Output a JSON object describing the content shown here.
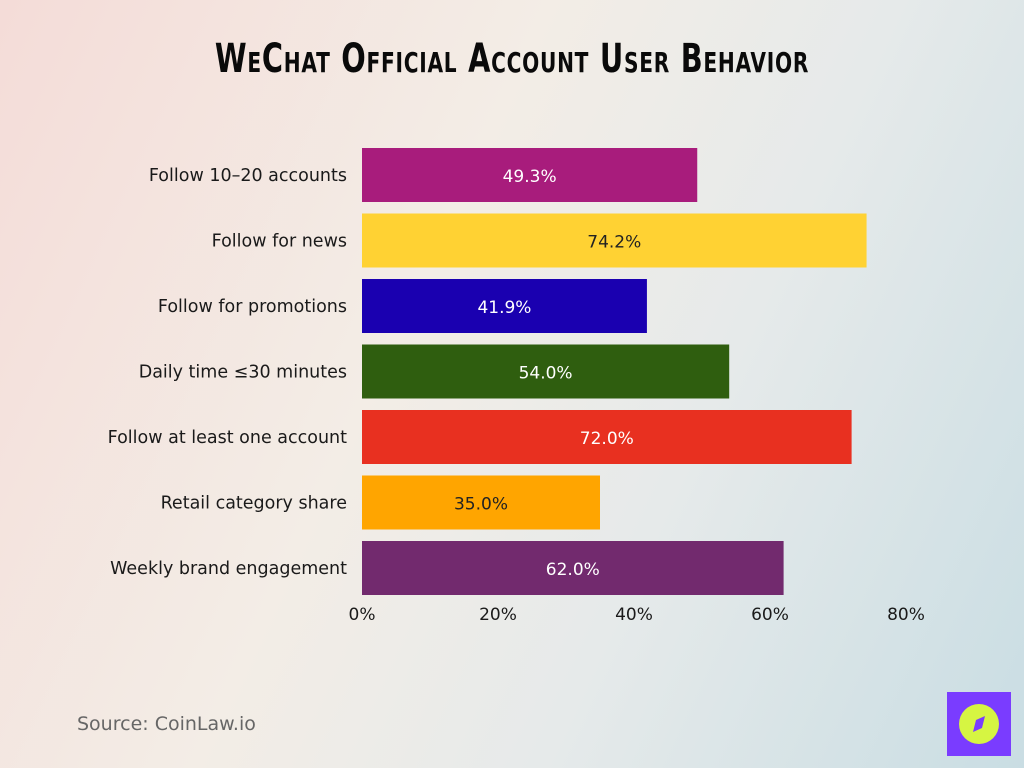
{
  "chart_data": {
    "type": "bar",
    "orientation": "horizontal",
    "title": "WeChat Official Account User Behavior",
    "categories": [
      "Follow 10–20 accounts",
      "Follow for news",
      "Follow for promotions",
      "Daily time ≤30 minutes",
      "Follow at least one account",
      "Retail category share",
      "Weekly brand engagement"
    ],
    "values": [
      49.3,
      74.2,
      41.9,
      54.0,
      72.0,
      35.0,
      62.0
    ],
    "data_labels": [
      "49.3%",
      "74.2%",
      "41.9%",
      "54.0%",
      "72.0%",
      "35.0%",
      "62.0%"
    ],
    "colors": [
      "#a81c7c",
      "#ffd233",
      "#1a00b0",
      "#2f5e0f",
      "#e83020",
      "#ffa500",
      "#722a6e"
    ],
    "label_colors": [
      "#ffffff",
      "#222222",
      "#ffffff",
      "#ffffff",
      "#ffffff",
      "#222222",
      "#ffffff"
    ],
    "xlim": [
      0,
      80
    ],
    "xticks": [
      0,
      20,
      40,
      60,
      80
    ],
    "xtick_labels": [
      "0%",
      "20%",
      "40%",
      "60%",
      "80%"
    ],
    "grid": false,
    "xlabel": "",
    "ylabel": ""
  },
  "source": "Source: CoinLaw.io",
  "logo": {
    "icon": "compass-icon",
    "colors": [
      "#7a3cff",
      "#d6f542"
    ]
  }
}
